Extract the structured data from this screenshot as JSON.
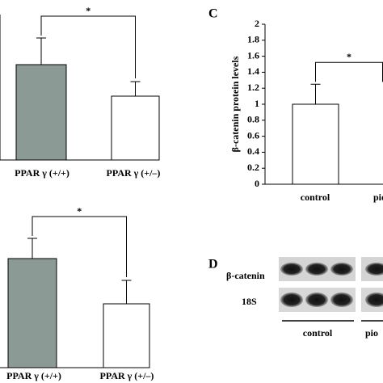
{
  "chart_data": [
    {
      "type": "bar",
      "categories": [
        "PPAR γ (+/+)",
        "PPAR γ (+/–)"
      ],
      "values": [
        1.18,
        0.79
      ],
      "errors": [
        0.33,
        0.18
      ],
      "colors": [
        "#8c9a96",
        "#ffffff"
      ],
      "ylim": [
        0,
        1.8
      ],
      "annotation": "*"
    },
    {
      "type": "bar",
      "categories": [
        "PPAR γ (+/+)",
        "PPAR γ (+/–)"
      ],
      "values": [
        1.35,
        0.79
      ],
      "errors": [
        0.25,
        0.29
      ],
      "colors": [
        "#8c9a96",
        "#ffffff"
      ],
      "ylim": [
        0,
        1.8
      ],
      "annotation": "*"
    },
    {
      "type": "bar",
      "panel": "C",
      "y_label": "β-catenin protein levels",
      "categories": [
        "control",
        "pio"
      ],
      "values": [
        1.0,
        null
      ],
      "errors": [
        0.25,
        null
      ],
      "colors": [
        "#ffffff",
        "#ffffff"
      ],
      "ylim": [
        0,
        2
      ],
      "yticks": [
        0,
        0.2,
        0.4,
        0.6,
        0.8,
        1,
        1.2,
        1.4,
        1.6,
        1.8,
        2
      ],
      "annotation": "*"
    }
  ],
  "blot": {
    "panel": "D",
    "rows": [
      "β-catenin",
      "18S"
    ],
    "groups": [
      "control",
      "pio"
    ]
  }
}
